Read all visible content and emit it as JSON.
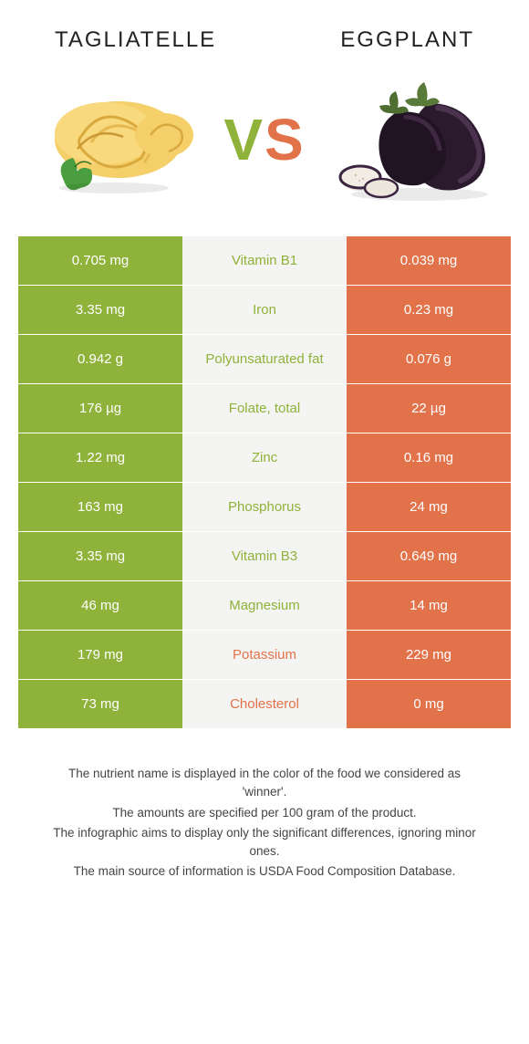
{
  "header": {
    "left_title": "TAGLIATELLE",
    "right_title": "EGGPLANT",
    "vs_v": "V",
    "vs_s": "S"
  },
  "colors": {
    "left": "#8fb23a",
    "right": "#e2724a",
    "mid_bg": "#f4f4f2"
  },
  "rows": [
    {
      "left": "0.705 mg",
      "label": "Vitamin B1",
      "right": "0.039 mg",
      "winner": "left"
    },
    {
      "left": "3.35 mg",
      "label": "Iron",
      "right": "0.23 mg",
      "winner": "left"
    },
    {
      "left": "0.942 g",
      "label": "Polyunsaturated fat",
      "right": "0.076 g",
      "winner": "left"
    },
    {
      "left": "176 µg",
      "label": "Folate, total",
      "right": "22 µg",
      "winner": "left"
    },
    {
      "left": "1.22 mg",
      "label": "Zinc",
      "right": "0.16 mg",
      "winner": "left"
    },
    {
      "left": "163 mg",
      "label": "Phosphorus",
      "right": "24 mg",
      "winner": "left"
    },
    {
      "left": "3.35 mg",
      "label": "Vitamin B3",
      "right": "0.649 mg",
      "winner": "left"
    },
    {
      "left": "46 mg",
      "label": "Magnesium",
      "right": "14 mg",
      "winner": "left"
    },
    {
      "left": "179 mg",
      "label": "Potassium",
      "right": "229 mg",
      "winner": "right"
    },
    {
      "left": "73 mg",
      "label": "Cholesterol",
      "right": "0 mg",
      "winner": "right"
    }
  ],
  "footer": {
    "line1": "The nutrient name is displayed in the color of the food we considered as 'winner'.",
    "line2": "The amounts are specified per 100 gram of the product.",
    "line3": "The infographic aims to display only the significant differences, ignoring minor ones.",
    "line4": "The main source of information is USDA Food Composition Database."
  }
}
